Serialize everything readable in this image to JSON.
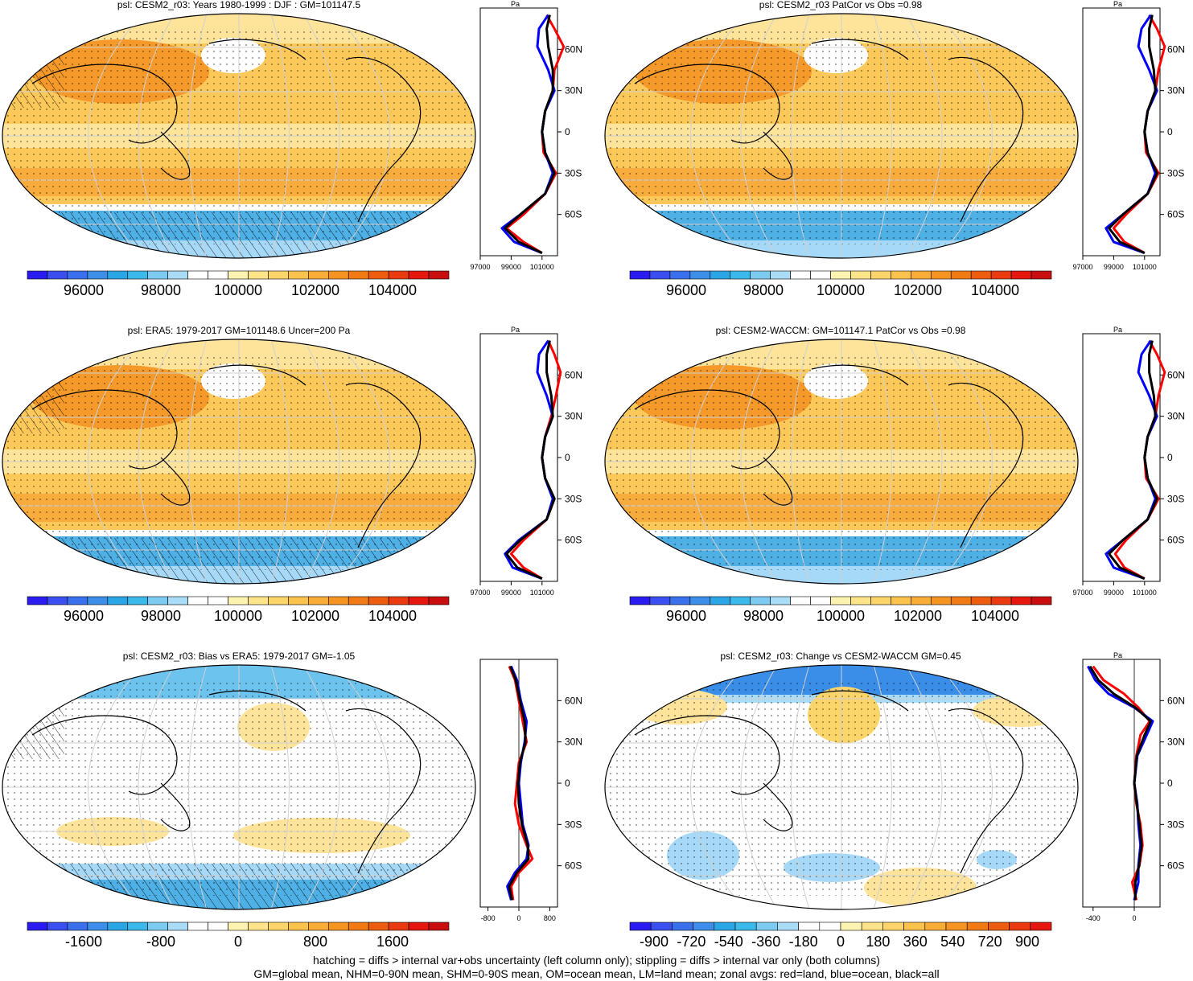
{
  "colors": {
    "map_fill_full": "#fcc85a",
    "map_fill_soft": "#fde49a",
    "map_fill_strong": "#f59a2a",
    "map_fill_ice": "#4fb0e6",
    "map_fill_ice_light": "#a6d9f7",
    "land_line": "#000000",
    "graticule": "#d0d0d0",
    "zonal_land": "#ff0000",
    "zonal_ocean": "#0000ff",
    "zonal_all": "#000000"
  },
  "palette_abs": [
    "#2a1cf0",
    "#3b4ff0",
    "#3a70ee",
    "#3c8ee8",
    "#2aa6e6",
    "#3bb9ea",
    "#7dcbf0",
    "#a9dcf6",
    "#ffffff",
    "#ffffff",
    "#fdf3b0",
    "#fde488",
    "#fcd56a",
    "#fbc24e",
    "#f9ad36",
    "#f69422",
    "#f17a14",
    "#ee5c10",
    "#ea3a10",
    "#e5170f",
    "#c80e0e"
  ],
  "palette_diff": [
    "#2a1cf0",
    "#3b4ff0",
    "#3a70ee",
    "#3c8ee8",
    "#2aa6e6",
    "#3bb9ea",
    "#7dcbf0",
    "#a9dcf6",
    "#ffffff",
    "#ffffff",
    "#fdf3b0",
    "#fde488",
    "#fcd56a",
    "#fbc24e",
    "#f9ad36",
    "#f69422",
    "#f17a14",
    "#ee5c10",
    "#ea3a10",
    "#e5170f"
  ],
  "chart_data": [
    {
      "type": "heatmap",
      "title": "psl: CESM2_r03: Years 1980-1999 : DJF : GM=101147.5",
      "colorbar_ticks": [
        "96000",
        "98000",
        "100000",
        "102000",
        "104000"
      ],
      "zonal": {
        "unit": "Pa",
        "lat_ticks": [
          "60N",
          "30N",
          "0",
          "30S",
          "60S"
        ],
        "x_ticks": [
          "97000",
          "99000",
          "101000"
        ],
        "xlim": [
          97000,
          102000
        ],
        "land": [
          [
            85,
            101300
          ],
          [
            75,
            101800
          ],
          [
            62,
            102400
          ],
          [
            45,
            101800
          ],
          [
            30,
            101700
          ],
          [
            15,
            101200
          ],
          [
            0,
            101000
          ],
          [
            -15,
            101100
          ],
          [
            -30,
            101900
          ],
          [
            -45,
            101200
          ],
          [
            -60,
            99800
          ],
          [
            -70,
            98700
          ],
          [
            -80,
            99800
          ],
          [
            -88,
            101000
          ]
        ],
        "ocean": [
          [
            85,
            101400
          ],
          [
            75,
            100800
          ],
          [
            62,
            100700
          ],
          [
            45,
            101400
          ],
          [
            30,
            101800
          ],
          [
            15,
            101200
          ],
          [
            0,
            101000
          ],
          [
            -15,
            101200
          ],
          [
            -30,
            101700
          ],
          [
            -45,
            101200
          ],
          [
            -60,
            99600
          ],
          [
            -70,
            98400
          ],
          [
            -80,
            99200
          ],
          [
            -88,
            101000
          ]
        ],
        "all": [
          [
            85,
            101500
          ],
          [
            75,
            101300
          ],
          [
            62,
            101400
          ],
          [
            45,
            101700
          ],
          [
            30,
            101700
          ],
          [
            15,
            101200
          ],
          [
            0,
            101000
          ],
          [
            -15,
            101200
          ],
          [
            -30,
            101800
          ],
          [
            -45,
            101200
          ],
          [
            -60,
            99600
          ],
          [
            -70,
            98600
          ],
          [
            -80,
            99500
          ],
          [
            -88,
            101000
          ]
        ]
      }
    },
    {
      "type": "heatmap",
      "title": "psl: CESM2_r03 PatCor vs Obs =0.98",
      "colorbar_ticks": [
        "96000",
        "98000",
        "100000",
        "102000",
        "104000"
      ],
      "zonal": {
        "unit": "Pa",
        "lat_ticks": [
          "60N",
          "30N",
          "0",
          "30S",
          "60S"
        ],
        "x_ticks": [
          "97000",
          "99000",
          "101000"
        ],
        "xlim": [
          97000,
          102000
        ],
        "land": [
          [
            85,
            101300
          ],
          [
            75,
            101800
          ],
          [
            62,
            102300
          ],
          [
            45,
            101900
          ],
          [
            30,
            101700
          ],
          [
            15,
            101200
          ],
          [
            0,
            101000
          ],
          [
            -15,
            101100
          ],
          [
            -30,
            101900
          ],
          [
            -45,
            101200
          ],
          [
            -60,
            99800
          ],
          [
            -70,
            99000
          ],
          [
            -80,
            99700
          ],
          [
            -88,
            101000
          ]
        ],
        "ocean": [
          [
            85,
            101400
          ],
          [
            75,
            100800
          ],
          [
            62,
            100600
          ],
          [
            45,
            101300
          ],
          [
            30,
            101800
          ],
          [
            15,
            101200
          ],
          [
            0,
            101000
          ],
          [
            -15,
            101200
          ],
          [
            -30,
            101700
          ],
          [
            -45,
            101200
          ],
          [
            -60,
            99600
          ],
          [
            -70,
            98500
          ],
          [
            -80,
            99000
          ],
          [
            -88,
            101000
          ]
        ],
        "all": [
          [
            85,
            101500
          ],
          [
            75,
            101300
          ],
          [
            62,
            101300
          ],
          [
            45,
            101600
          ],
          [
            30,
            101700
          ],
          [
            15,
            101200
          ],
          [
            0,
            101000
          ],
          [
            -15,
            101200
          ],
          [
            -30,
            101800
          ],
          [
            -45,
            101200
          ],
          [
            -60,
            99600
          ],
          [
            -70,
            98700
          ],
          [
            -80,
            99400
          ],
          [
            -88,
            101000
          ]
        ]
      }
    },
    {
      "type": "heatmap",
      "title": "psl: ERA5: 1979-2017 GM=101148.6 Uncer=200 Pa",
      "colorbar_ticks": [
        "96000",
        "98000",
        "100000",
        "102000",
        "104000"
      ],
      "zonal": {
        "unit": "Pa",
        "lat_ticks": [
          "60N",
          "30N",
          "0",
          "30S",
          "60S"
        ],
        "x_ticks": [
          "97000",
          "99000",
          "101000"
        ],
        "xlim": [
          97000,
          102000
        ],
        "land": [
          [
            85,
            101400
          ],
          [
            75,
            101800
          ],
          [
            62,
            102200
          ],
          [
            45,
            101900
          ],
          [
            30,
            101600
          ],
          [
            15,
            101200
          ],
          [
            0,
            101000
          ],
          [
            -15,
            101200
          ],
          [
            -30,
            101800
          ],
          [
            -45,
            101300
          ],
          [
            -60,
            99800
          ],
          [
            -70,
            99000
          ],
          [
            -80,
            99800
          ],
          [
            -88,
            101000
          ]
        ],
        "ocean": [
          [
            85,
            101400
          ],
          [
            75,
            100800
          ],
          [
            62,
            100700
          ],
          [
            45,
            101300
          ],
          [
            30,
            101700
          ],
          [
            15,
            101200
          ],
          [
            0,
            101000
          ],
          [
            -15,
            101200
          ],
          [
            -30,
            101700
          ],
          [
            -45,
            101300
          ],
          [
            -60,
            99500
          ],
          [
            -70,
            98600
          ],
          [
            -80,
            99100
          ],
          [
            -88,
            101000
          ]
        ],
        "all": [
          [
            85,
            101500
          ],
          [
            75,
            101300
          ],
          [
            62,
            101300
          ],
          [
            45,
            101600
          ],
          [
            30,
            101700
          ],
          [
            15,
            101200
          ],
          [
            0,
            101000
          ],
          [
            -15,
            101200
          ],
          [
            -30,
            101800
          ],
          [
            -45,
            101300
          ],
          [
            -60,
            99600
          ],
          [
            -70,
            98700
          ],
          [
            -80,
            99400
          ],
          [
            -88,
            101000
          ]
        ]
      }
    },
    {
      "type": "heatmap",
      "title": "psl: CESM2-WACCM: GM=101147.1 PatCor vs Obs =0.98",
      "colorbar_ticks": [
        "96000",
        "98000",
        "100000",
        "102000",
        "104000"
      ],
      "zonal": {
        "unit": "Pa",
        "lat_ticks": [
          "60N",
          "30N",
          "0",
          "30S",
          "60S"
        ],
        "x_ticks": [
          "97000",
          "99000",
          "101000"
        ],
        "xlim": [
          97000,
          102000
        ],
        "land": [
          [
            85,
            101300
          ],
          [
            75,
            101800
          ],
          [
            62,
            102300
          ],
          [
            45,
            101900
          ],
          [
            30,
            101700
          ],
          [
            15,
            101200
          ],
          [
            0,
            101000
          ],
          [
            -15,
            101100
          ],
          [
            -30,
            101900
          ],
          [
            -45,
            101200
          ],
          [
            -60,
            99800
          ],
          [
            -70,
            99100
          ],
          [
            -80,
            99700
          ],
          [
            -88,
            101000
          ]
        ],
        "ocean": [
          [
            85,
            101400
          ],
          [
            75,
            100800
          ],
          [
            62,
            100600
          ],
          [
            45,
            101300
          ],
          [
            30,
            101800
          ],
          [
            15,
            101200
          ],
          [
            0,
            101000
          ],
          [
            -15,
            101200
          ],
          [
            -30,
            101700
          ],
          [
            -45,
            101200
          ],
          [
            -60,
            99600
          ],
          [
            -70,
            98500
          ],
          [
            -80,
            99000
          ],
          [
            -88,
            101000
          ]
        ],
        "all": [
          [
            85,
            101500
          ],
          [
            75,
            101300
          ],
          [
            62,
            101300
          ],
          [
            45,
            101600
          ],
          [
            30,
            101700
          ],
          [
            15,
            101200
          ],
          [
            0,
            101000
          ],
          [
            -15,
            101200
          ],
          [
            -30,
            101800
          ],
          [
            -45,
            101200
          ],
          [
            -60,
            99600
          ],
          [
            -70,
            98700
          ],
          [
            -80,
            99400
          ],
          [
            -88,
            101000
          ]
        ]
      }
    },
    {
      "type": "heatmap",
      "title": "psl: CESM2_r03: Bias vs ERA5: 1979-2017 GM=-1.05",
      "colorbar_ticks": [
        "-1600",
        "-800",
        "0",
        "800",
        "1600"
      ],
      "zonal": {
        "unit": "",
        "lat_ticks": [
          "60N",
          "30N",
          "0",
          "30S",
          "60S"
        ],
        "x_ticks": [
          "-800",
          "0",
          "800"
        ],
        "xlim": [
          -1000,
          1000
        ],
        "land": [
          [
            85,
            -250
          ],
          [
            75,
            -100
          ],
          [
            60,
            0
          ],
          [
            45,
            100
          ],
          [
            30,
            200
          ],
          [
            15,
            0
          ],
          [
            0,
            -50
          ],
          [
            -15,
            -100
          ],
          [
            -30,
            0
          ],
          [
            -45,
            200
          ],
          [
            -55,
            350
          ],
          [
            -65,
            0
          ],
          [
            -75,
            -200
          ],
          [
            -85,
            -150
          ]
        ],
        "ocean": [
          [
            85,
            -200
          ],
          [
            75,
            -50
          ],
          [
            60,
            50
          ],
          [
            45,
            200
          ],
          [
            30,
            150
          ],
          [
            15,
            50
          ],
          [
            0,
            0
          ],
          [
            -15,
            50
          ],
          [
            -30,
            100
          ],
          [
            -45,
            250
          ],
          [
            -55,
            200
          ],
          [
            -65,
            -100
          ],
          [
            -75,
            -300
          ],
          [
            -85,
            -200
          ]
        ],
        "all": [
          [
            85,
            -220
          ],
          [
            75,
            -80
          ],
          [
            60,
            30
          ],
          [
            45,
            150
          ],
          [
            30,
            170
          ],
          [
            15,
            30
          ],
          [
            0,
            -20
          ],
          [
            -15,
            0
          ],
          [
            -30,
            80
          ],
          [
            -45,
            230
          ],
          [
            -55,
            250
          ],
          [
            -65,
            -50
          ],
          [
            -75,
            -250
          ],
          [
            -85,
            -180
          ]
        ]
      }
    },
    {
      "type": "heatmap",
      "title": "psl: CESM2_r03: Change vs CESM2-WACCM GM=0.45",
      "colorbar_ticks": [
        "-900",
        "-720",
        "-540",
        "-360",
        "-180",
        "0",
        "180",
        "360",
        "540",
        "720",
        "900"
      ],
      "zonal": {
        "unit": "Pa",
        "lat_ticks": [
          "60N",
          "30N",
          "0",
          "30S",
          "60S"
        ],
        "x_ticks": [
          "-400",
          "0"
        ],
        "xlim": [
          -500,
          250
        ],
        "land": [
          [
            85,
            -400
          ],
          [
            75,
            -300
          ],
          [
            65,
            -100
          ],
          [
            55,
            40
          ],
          [
            45,
            150
          ],
          [
            35,
            60
          ],
          [
            20,
            20
          ],
          [
            0,
            0
          ],
          [
            -15,
            20
          ],
          [
            -30,
            60
          ],
          [
            -45,
            80
          ],
          [
            -60,
            50
          ],
          [
            -72,
            -20
          ],
          [
            -85,
            20
          ]
        ],
        "ocean": [
          [
            85,
            -450
          ],
          [
            75,
            -380
          ],
          [
            65,
            -250
          ],
          [
            55,
            0
          ],
          [
            45,
            180
          ],
          [
            35,
            120
          ],
          [
            20,
            30
          ],
          [
            0,
            0
          ],
          [
            -15,
            30
          ],
          [
            -30,
            40
          ],
          [
            -45,
            60
          ],
          [
            -60,
            40
          ],
          [
            -72,
            40
          ],
          [
            -85,
            0
          ]
        ],
        "all": [
          [
            85,
            -430
          ],
          [
            75,
            -350
          ],
          [
            65,
            -200
          ],
          [
            55,
            10
          ],
          [
            45,
            160
          ],
          [
            35,
            100
          ],
          [
            20,
            25
          ],
          [
            0,
            0
          ],
          [
            -15,
            25
          ],
          [
            -30,
            50
          ],
          [
            -45,
            70
          ],
          [
            -60,
            45
          ],
          [
            -72,
            10
          ],
          [
            -85,
            10
          ]
        ]
      }
    }
  ],
  "footnote": {
    "line1": "hatching = diffs > internal var+obs uncertainty (left column only); stippling = diffs > internal var only (both columns)",
    "line2": "GM=global mean, NHM=0-90N mean, SHM=0-90S mean, OM=ocean mean, LM=land mean; zonal avgs: red=land, blue=ocean, black=all"
  }
}
